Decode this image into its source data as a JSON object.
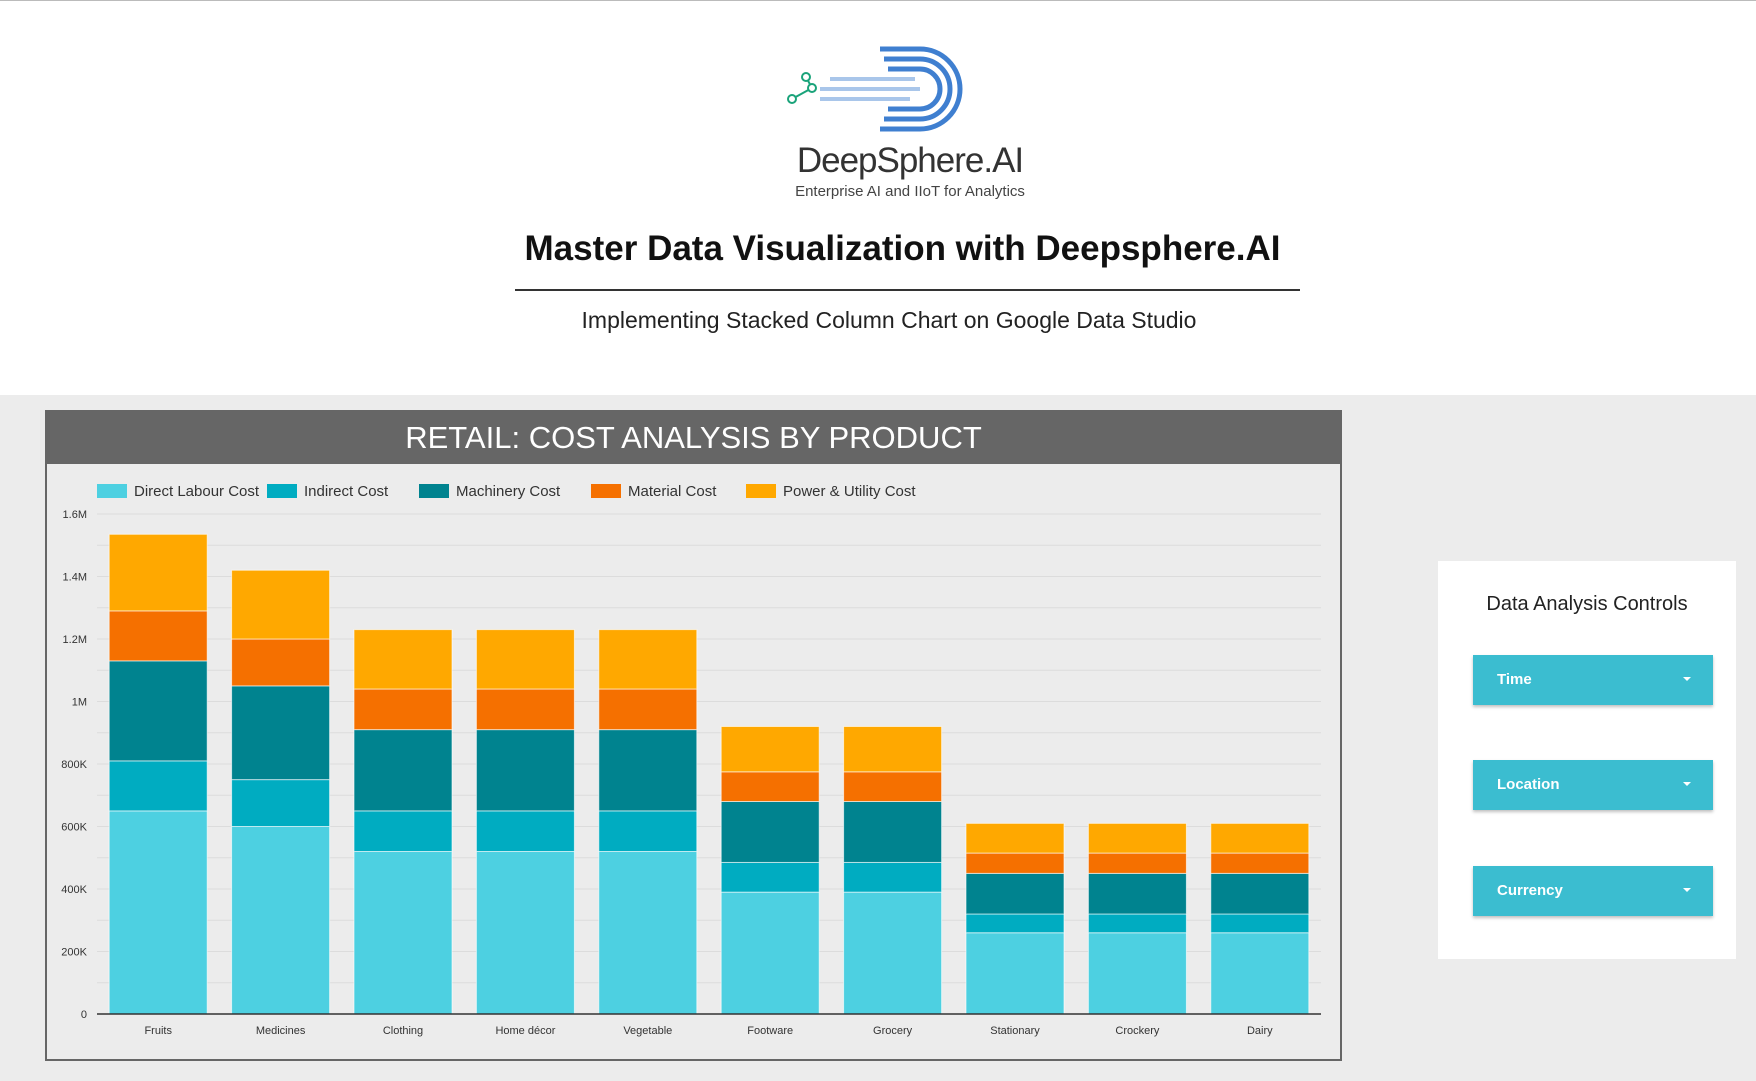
{
  "logo": {
    "brand": "DeepSphere.AI",
    "tagline": "Enterprise AI and IIoT for Analytics"
  },
  "header": {
    "title": "Master Data Visualization with Deepsphere.AI",
    "subtitle": "Implementing Stacked Column Chart on Google Data Studio"
  },
  "controls": {
    "title": "Data Analysis Controls",
    "dropdowns": [
      "Time",
      "Location",
      "Currency"
    ]
  },
  "chart_data": {
    "type": "bar",
    "stacked": true,
    "title": "RETAIL: COST ANALYSIS BY PRODUCT",
    "categories": [
      "Fruits",
      "Medicines",
      "Clothing",
      "Home décor",
      "Vegetable",
      "Footware",
      "Grocery",
      "Stationary",
      "Crockery",
      "Dairy"
    ],
    "series": [
      {
        "name": "Direct Labour Cost",
        "color": "#4dd0e1",
        "values": [
          650000,
          600000,
          520000,
          520000,
          520000,
          390000,
          390000,
          260000,
          260000,
          260000
        ]
      },
      {
        "name": "Indirect Cost",
        "color": "#00acc1",
        "values": [
          160000,
          150000,
          130000,
          130000,
          130000,
          95000,
          95000,
          60000,
          60000,
          60000
        ]
      },
      {
        "name": "Machinery Cost",
        "color": "#00838f",
        "values": [
          320000,
          300000,
          260000,
          260000,
          260000,
          195000,
          195000,
          130000,
          130000,
          130000
        ]
      },
      {
        "name": "Material Cost",
        "color": "#f57000",
        "values": [
          160000,
          150000,
          130000,
          130000,
          130000,
          95000,
          95000,
          65000,
          65000,
          65000
        ]
      },
      {
        "name": "Power & Utility Cost",
        "color": "#ffa800",
        "values": [
          245000,
          220000,
          190000,
          190000,
          190000,
          145000,
          145000,
          95000,
          95000,
          95000
        ]
      }
    ],
    "yticks": [
      "0",
      "200K",
      "400K",
      "600K",
      "800K",
      "1M",
      "1.2M",
      "1.4M",
      "1.6M"
    ],
    "ylim": [
      0,
      1600000
    ],
    "legend": "top-left",
    "grid": true
  }
}
